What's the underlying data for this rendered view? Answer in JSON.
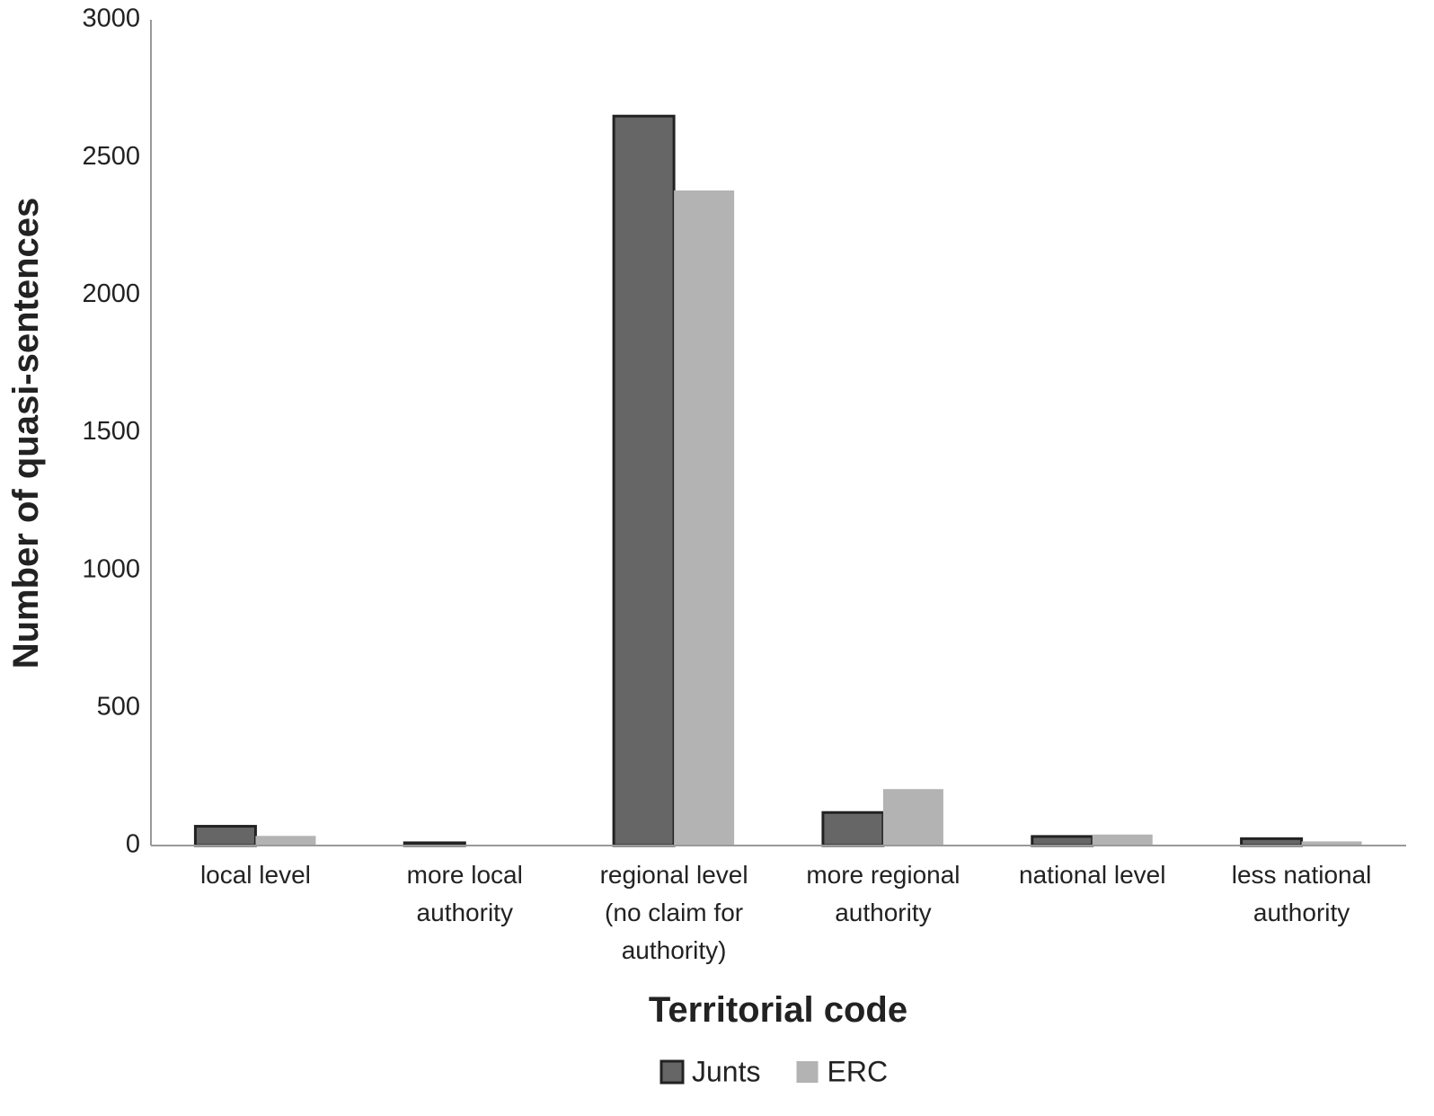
{
  "chart_data": {
    "type": "bar",
    "x_label": "Territorial code",
    "y_label": "Number of quasi-sentences",
    "categories": [
      "local level",
      "more local\nauthority",
      "regional level\n(no claim for\nauthority)",
      "more regional\nauthority",
      "national level",
      "less national\nauthority"
    ],
    "series": [
      {
        "name": "Junts",
        "color": "#666666",
        "stroke": "#222222",
        "values": [
          70,
          10,
          2650,
          120,
          33,
          25
        ]
      },
      {
        "name": "ERC",
        "color": "#b3b3b3",
        "values": [
          35,
          0,
          2380,
          205,
          40,
          15
        ]
      }
    ],
    "ylim": [
      0,
      3000
    ],
    "yticks": [
      0,
      500,
      1000,
      1500,
      2000,
      2500,
      3000
    ],
    "grid": false,
    "legend": "bottom"
  }
}
